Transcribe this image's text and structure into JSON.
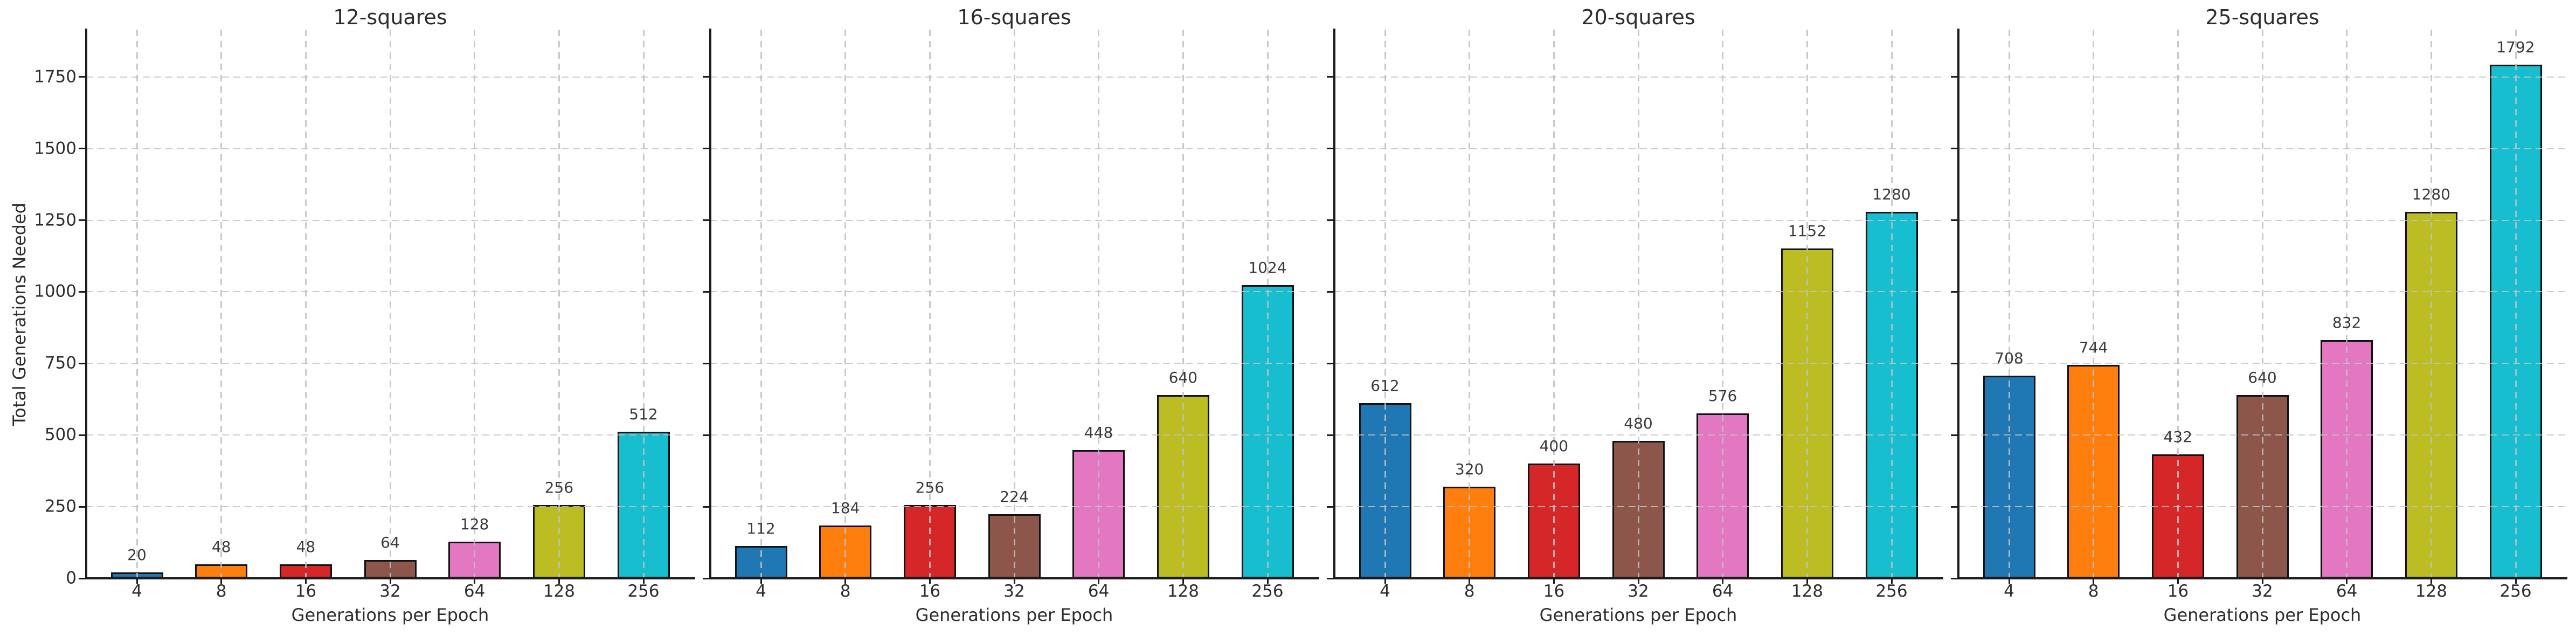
{
  "figure": {
    "ylabel": "Total Generations Needed",
    "xlabel": "Generations per Epoch",
    "background": "#ffffff",
    "grid_color": "#c6c6c6",
    "spine_color": "#1c1c1c",
    "title_color": "#2d2d2d",
    "tick_color": "#2d2d2d",
    "bar_label_color": "#3a3a3a",
    "bar_edge_color": "#111111",
    "bar_colors": [
      "#1f77b4",
      "#ff7f0e",
      "#d62728",
      "#8c564b",
      "#e377c2",
      "#bcbd22",
      "#17becf"
    ],
    "ytick_labels": [
      "0",
      "250",
      "500",
      "750",
      "1000",
      "1250",
      "1500",
      "1750"
    ]
  },
  "chart_data": [
    {
      "type": "bar",
      "title": "12-squares",
      "xlabel": "Generations per Epoch",
      "ylabel": "Total Generations Needed",
      "categories": [
        "4",
        "8",
        "16",
        "32",
        "64",
        "128",
        "256"
      ],
      "values": [
        20,
        48,
        48,
        64,
        128,
        256,
        512
      ],
      "yticks": [
        0,
        250,
        500,
        750,
        1000,
        1250,
        1500,
        1750
      ],
      "ylim": [
        0,
        1915
      ],
      "grid": true,
      "legend": "none"
    },
    {
      "type": "bar",
      "title": "16-squares",
      "xlabel": "Generations per Epoch",
      "ylabel": "Total Generations Needed",
      "categories": [
        "4",
        "8",
        "16",
        "32",
        "64",
        "128",
        "256"
      ],
      "values": [
        112,
        184,
        256,
        224,
        448,
        640,
        1024
      ],
      "yticks": [
        0,
        250,
        500,
        750,
        1000,
        1250,
        1500,
        1750
      ],
      "ylim": [
        0,
        1915
      ],
      "grid": true,
      "legend": "none"
    },
    {
      "type": "bar",
      "title": "20-squares",
      "xlabel": "Generations per Epoch",
      "ylabel": "Total Generations Needed",
      "categories": [
        "4",
        "8",
        "16",
        "32",
        "64",
        "128",
        "256"
      ],
      "values": [
        612,
        320,
        400,
        480,
        576,
        1152,
        1280
      ],
      "yticks": [
        0,
        250,
        500,
        750,
        1000,
        1250,
        1500,
        1750
      ],
      "ylim": [
        0,
        1915
      ],
      "grid": true,
      "legend": "none"
    },
    {
      "type": "bar",
      "title": "25-squares",
      "xlabel": "Generations per Epoch",
      "ylabel": "Total Generations Needed",
      "categories": [
        "4",
        "8",
        "16",
        "32",
        "64",
        "128",
        "256"
      ],
      "values": [
        708,
        744,
        432,
        640,
        832,
        1280,
        1792
      ],
      "yticks": [
        0,
        250,
        500,
        750,
        1000,
        1250,
        1500,
        1750
      ],
      "ylim": [
        0,
        1915
      ],
      "grid": true,
      "legend": "none"
    }
  ]
}
